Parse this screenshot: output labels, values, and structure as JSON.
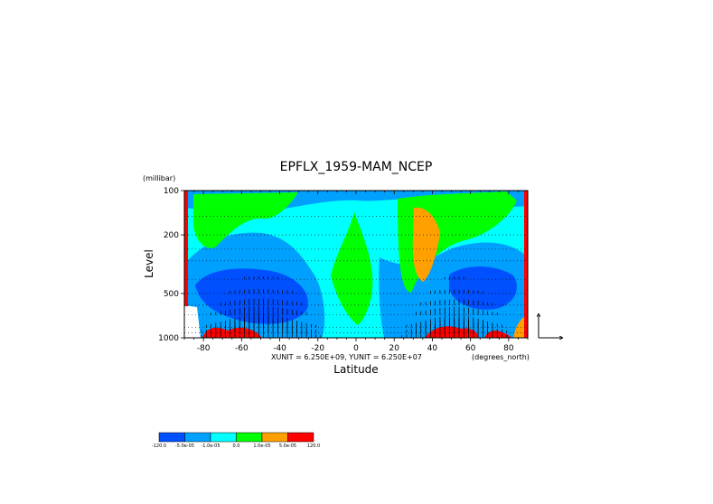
{
  "chart_data": {
    "type": "heatmap",
    "title": "EPFLX_1959-MAM_NCEP",
    "xlabel": "Latitude",
    "ylabel": "Level",
    "y_unit_label": "(millibar)",
    "x_unit_label": "(degrees_north)",
    "x_range": [
      -90,
      90
    ],
    "y_range": [
      1000,
      100
    ],
    "y_scale": "log",
    "x_ticks": [
      -80,
      -60,
      -40,
      -20,
      0,
      20,
      40,
      60,
      80
    ],
    "x_tick_labels": [
      "-80",
      "-60",
      "-40",
      "-20",
      "0",
      "20",
      "40",
      "60",
      "80"
    ],
    "y_ticks": [
      100,
      200,
      500,
      1000
    ],
    "y_tick_labels": [
      "100",
      "200",
      "500",
      "1000"
    ],
    "vector_scale_note": "XUNIT = 6.250E+09, YUNIT = 6.250E+07",
    "overlay": "EP flux vectors (arrows)",
    "colorbar": {
      "labels": [
        "-120.0",
        "-5.0e-05",
        "-1.0e-05",
        "0.0",
        "1.0e-05",
        "5.0e-05",
        "120.0"
      ],
      "colors": [
        "#0050ff",
        "#00a0ff",
        "#00ffff",
        "#00ff00",
        "#ffa000",
        "#ff0000"
      ]
    },
    "regions": [
      {
        "desc": "background",
        "level": 1,
        "color": "#00ffff"
      },
      {
        "desc": "upper band",
        "level": 0,
        "color": "#00a0ff"
      },
      {
        "desc": "SH upper",
        "level": 2,
        "color": "#00ff00"
      },
      {
        "desc": "equatorial column",
        "level": 2,
        "color": "#00ff00"
      },
      {
        "desc": "NH upper",
        "level": 2,
        "color": "#00ff00"
      },
      {
        "desc": "NH 30-40N",
        "level": 3,
        "color": "#ffa000"
      },
      {
        "desc": "SH mid core",
        "level": -1,
        "color": "#0050ff"
      },
      {
        "desc": "NH mid core",
        "level": -1,
        "color": "#0050ff"
      },
      {
        "desc": "surface maxima",
        "level": 4,
        "color": "#ff0000"
      }
    ]
  }
}
